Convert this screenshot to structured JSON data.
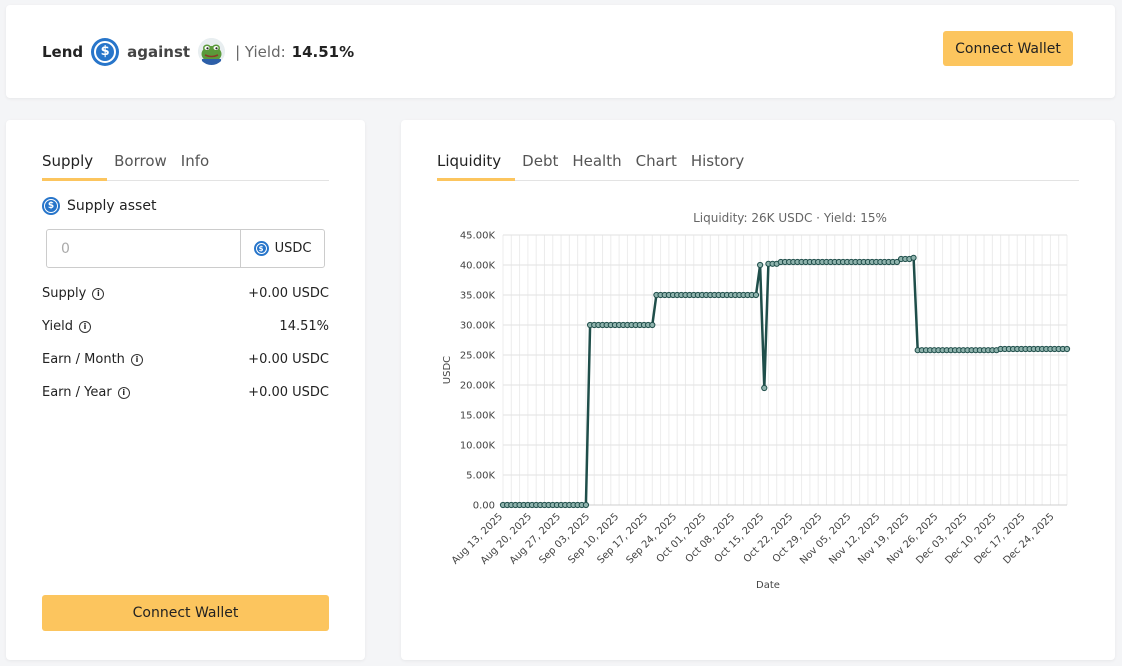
{
  "header": {
    "lend": "Lend",
    "against": "against",
    "yield_label": "| Yield:",
    "yield_value": "14.51%",
    "connect_wallet": "Connect Wallet"
  },
  "left": {
    "tabs": [
      "Supply",
      "Borrow",
      "Info"
    ],
    "supply_asset_label": "Supply asset",
    "input_placeholder": "0",
    "input_unit": "USDC",
    "stats": [
      {
        "label": "Supply",
        "value": "+0.00 USDC"
      },
      {
        "label": "Yield",
        "value": "14.51%"
      },
      {
        "label": "Earn / Month",
        "value": "+0.00 USDC"
      },
      {
        "label": "Earn / Year",
        "value": "+0.00 USDC"
      }
    ],
    "connect_wallet": "Connect Wallet"
  },
  "right": {
    "tabs": [
      "Liquidity",
      "Debt",
      "Health",
      "Chart",
      "History"
    ]
  },
  "colors": {
    "accent": "#fcc55e",
    "usdc": "#2775ca",
    "line": "#1f4e4a"
  },
  "chart_data": {
    "type": "line",
    "title": "Liquidity: 26K USDC · Yield: 15%",
    "xlabel": "Date",
    "ylabel": "USDC",
    "ylim": [
      0,
      45000
    ],
    "yticks": [
      "0.00",
      "5.00K",
      "10.00K",
      "15.00K",
      "20.00K",
      "25.00K",
      "30.00K",
      "35.00K",
      "40.00K",
      "45.00K"
    ],
    "xticks": [
      "Aug 13, 2025",
      "Aug 20, 2025",
      "Aug 27, 2025",
      "Sep 03, 2025",
      "Sep 10, 2025",
      "Sep 17, 2025",
      "Sep 24, 2025",
      "Oct 01, 2025",
      "Oct 08, 2025",
      "Oct 15, 2025",
      "Oct 22, 2025",
      "Oct 29, 2025",
      "Nov 05, 2025",
      "Nov 12, 2025",
      "Nov 19, 2025",
      "Nov 26, 2025",
      "Dec 03, 2025",
      "Dec 10, 2025",
      "Dec 17, 2025",
      "Dec 24, 2025"
    ],
    "grid": true,
    "series": [
      {
        "values": [
          [
            "2025-08-13",
            0
          ],
          [
            "2025-09-02",
            0
          ],
          [
            "2025-09-03",
            30000
          ],
          [
            "2025-09-18",
            30000
          ],
          [
            "2025-09-19",
            35000
          ],
          [
            "2025-10-13",
            35000
          ],
          [
            "2025-10-14",
            40000
          ],
          [
            "2025-10-15",
            19500
          ],
          [
            "2025-10-16",
            40200
          ],
          [
            "2025-10-19",
            40500
          ],
          [
            "2025-11-16",
            40500
          ],
          [
            "2025-11-17",
            41000
          ],
          [
            "2025-11-19",
            41000
          ],
          [
            "2025-11-20",
            41200
          ],
          [
            "2025-11-21",
            25800
          ],
          [
            "2025-12-10",
            25800
          ],
          [
            "2025-12-11",
            26000
          ],
          [
            "2025-12-27",
            26000
          ]
        ]
      }
    ]
  }
}
